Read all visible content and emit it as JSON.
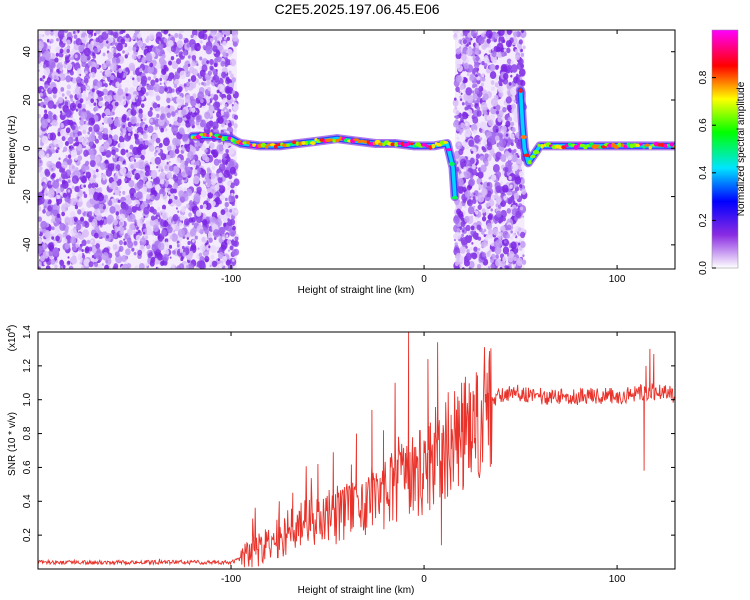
{
  "title": "C2E5.2025.197.06.45.E06",
  "chart_data": [
    {
      "type": "heatmap",
      "xlabel": "Height of straight line (km)",
      "ylabel": "Frequency (Hz)",
      "xlim": [
        -200,
        130
      ],
      "ylim": [
        -50,
        49
      ],
      "xticks": [
        -100,
        0,
        100
      ],
      "yticks": [
        -40,
        -20,
        0,
        20,
        40
      ],
      "colorbar": {
        "label": "Normalized spectral amplitude",
        "range": [
          0,
          1
        ],
        "ticks": [
          "0.0",
          "0.2",
          "0.4",
          "0.6",
          "0.8"
        ],
        "colors": [
          "#ffffff",
          "#8a2be2",
          "#0000ff",
          "#00e5ff",
          "#00ff00",
          "#ffff00",
          "#ff0000",
          "#ff00ff"
        ]
      },
      "noise_regions": [
        [
          -200,
          -97
        ],
        [
          16,
          52
        ]
      ],
      "signal_track": [
        [
          -120,
          5
        ],
        [
          -110,
          5
        ],
        [
          -100,
          4
        ],
        [
          -95,
          2
        ],
        [
          -85,
          1
        ],
        [
          -75,
          1
        ],
        [
          -65,
          2
        ],
        [
          -55,
          3
        ],
        [
          -45,
          4
        ],
        [
          -35,
          3
        ],
        [
          -25,
          2
        ],
        [
          -15,
          2
        ],
        [
          -5,
          1
        ],
        [
          5,
          1
        ],
        [
          12,
          2
        ],
        [
          15,
          -8
        ],
        [
          16,
          -20
        ],
        [
          50,
          24
        ],
        [
          51,
          10
        ],
        [
          52,
          0
        ],
        [
          54,
          -6
        ],
        [
          60,
          1
        ],
        [
          70,
          1
        ],
        [
          80,
          1
        ],
        [
          90,
          1
        ],
        [
          100,
          1
        ],
        [
          110,
          1
        ],
        [
          120,
          1
        ],
        [
          130,
          1
        ]
      ]
    },
    {
      "type": "line",
      "xlabel": "Height of straight line (km)",
      "ylabel": "SNR (10 * v/v)",
      "scale_note": "(x10",
      "scale_exp": "4",
      "scale_close": ")",
      "xlim": [
        -200,
        130
      ],
      "ylim": [
        0,
        1.4
      ],
      "xticks": [
        -100,
        0,
        100
      ],
      "yticks": [
        "0.2",
        "0.4",
        "0.6",
        "0.8",
        "1.0",
        "1.2",
        "1.4"
      ],
      "series_color": "#e8322a",
      "envelope": [
        [
          -200,
          0.04
        ],
        [
          -150,
          0.04
        ],
        [
          -100,
          0.04
        ],
        [
          -90,
          0.08
        ],
        [
          -80,
          0.15
        ],
        [
          -70,
          0.22
        ],
        [
          -60,
          0.27
        ],
        [
          -50,
          0.3
        ],
        [
          -40,
          0.34
        ],
        [
          -30,
          0.38
        ],
        [
          -20,
          0.45
        ],
        [
          -10,
          0.52
        ],
        [
          0,
          0.58
        ],
        [
          10,
          0.66
        ],
        [
          20,
          0.8
        ],
        [
          30,
          0.93
        ],
        [
          40,
          1.03
        ],
        [
          50,
          1.04
        ],
        [
          60,
          1.02
        ],
        [
          80,
          1.02
        ],
        [
          100,
          1.02
        ],
        [
          120,
          1.05
        ],
        [
          130,
          1.03
        ]
      ],
      "spikes": [
        [
          -137,
          0.06
        ],
        [
          -75,
          0.4
        ],
        [
          -68,
          0.45
        ],
        [
          -55,
          0.62
        ],
        [
          -47,
          0.69
        ],
        [
          -40,
          0.5
        ],
        [
          -35,
          0.8
        ],
        [
          -27,
          0.94
        ],
        [
          -21,
          0.82
        ],
        [
          -15,
          1.1
        ],
        [
          -8,
          1.4
        ],
        [
          -5,
          0.72
        ],
        [
          2,
          1.24
        ],
        [
          7,
          1.34
        ],
        [
          9,
          0.14
        ],
        [
          14,
          0.91
        ],
        [
          20,
          0.98
        ],
        [
          26,
          1.03
        ],
        [
          33,
          1.04
        ],
        [
          114,
          0.58
        ],
        [
          115,
          1.2
        ],
        [
          117,
          1.3
        ],
        [
          119,
          1.27
        ]
      ]
    }
  ]
}
